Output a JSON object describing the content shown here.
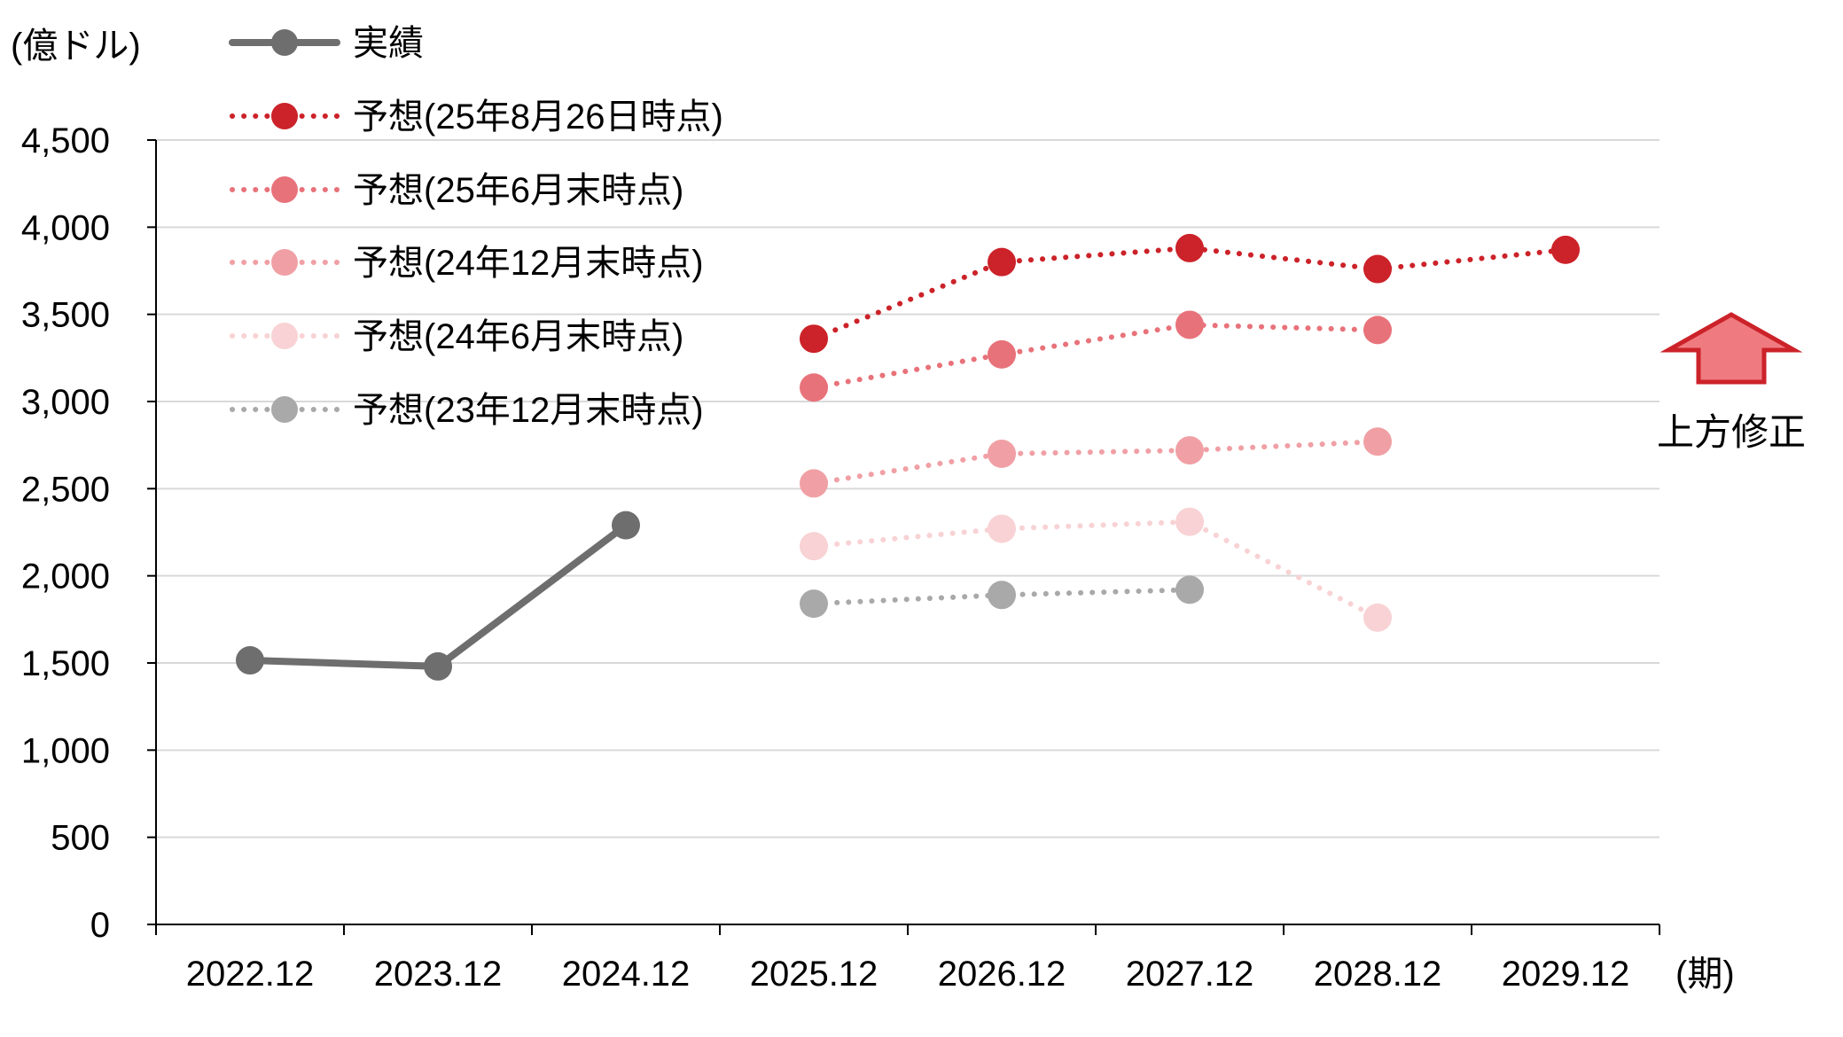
{
  "chart_data": {
    "type": "line",
    "unit_label": "(億ドル)",
    "x_unit_label": "(期)",
    "categories": [
      "2022.12",
      "2023.12",
      "2024.12",
      "2025.12",
      "2026.12",
      "2027.12",
      "2028.12",
      "2029.12"
    ],
    "ylim": [
      0,
      4500
    ],
    "yticks": [
      0,
      500,
      1000,
      1500,
      2000,
      2500,
      3000,
      3500,
      4000,
      4500
    ],
    "ytick_labels": [
      "0",
      "500",
      "1,000",
      "1,500",
      "2,000",
      "2,500",
      "3,000",
      "3,500",
      "4,000",
      "4,500"
    ],
    "grid": true,
    "legend_position": "top-left",
    "series": [
      {
        "name": "実績",
        "style": "solid",
        "color": "#6e6e6e",
        "values": [
          1515,
          1480,
          2290,
          null,
          null,
          null,
          null,
          null
        ]
      },
      {
        "name": "予想(25年8月26日時点)",
        "style": "dotted",
        "color": "#cc2229",
        "values": [
          null,
          null,
          null,
          3360,
          3800,
          3880,
          3760,
          3870
        ]
      },
      {
        "name": "予想(25年6月末時点)",
        "style": "dotted",
        "color": "#e8727a",
        "values": [
          null,
          null,
          null,
          3080,
          3270,
          3440,
          3410,
          null
        ]
      },
      {
        "name": "予想(24年12月末時点)",
        "style": "dotted",
        "color": "#f0a0a5",
        "values": [
          null,
          null,
          null,
          2530,
          2700,
          2720,
          2770,
          null
        ]
      },
      {
        "name": "予想(24年6月末時点)",
        "style": "dotted",
        "color": "#f8d2d4",
        "values": [
          null,
          null,
          null,
          2170,
          2270,
          2310,
          1760,
          null
        ]
      },
      {
        "name": "予想(23年12月末時点)",
        "style": "dotted",
        "color": "#a9a9a9",
        "values": [
          null,
          null,
          null,
          1840,
          1890,
          1920,
          null,
          null
        ]
      }
    ],
    "annotation": {
      "text": "上方修正",
      "arrow": "up",
      "fill": "#ef7b80",
      "stroke": "#cc2229"
    }
  }
}
